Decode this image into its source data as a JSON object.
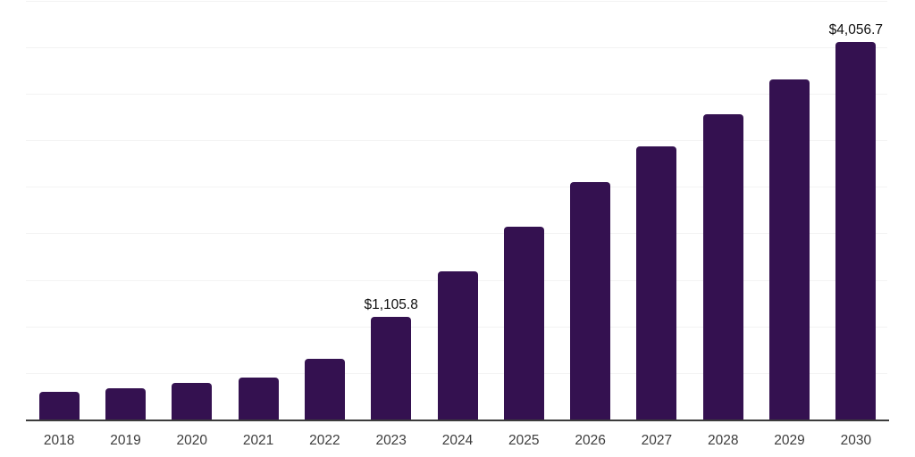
{
  "chart_data": {
    "type": "bar",
    "title": "",
    "xlabel": "",
    "ylabel": "",
    "categories": [
      "2018",
      "2019",
      "2020",
      "2021",
      "2022",
      "2023",
      "2024",
      "2025",
      "2026",
      "2027",
      "2028",
      "2029",
      "2030"
    ],
    "values": [
      295,
      335,
      395,
      455,
      655,
      1105.8,
      1590,
      2075,
      2550,
      2930,
      3275,
      3650,
      4056.7
    ],
    "data_labels": [
      null,
      null,
      null,
      null,
      null,
      "$1,105.8",
      null,
      null,
      null,
      null,
      null,
      null,
      "$4,056.7"
    ],
    "ylim": [
      0,
      4505
    ],
    "grid_step": 500,
    "grid": true,
    "legend": false,
    "colors": {
      "bar": "#341150",
      "gridline": "#f3f3f3",
      "axis_line": "#3c3c3c",
      "tick_label": "#3d3d3d",
      "data_label": "#0f0f0f",
      "background": "#ffffff"
    }
  }
}
